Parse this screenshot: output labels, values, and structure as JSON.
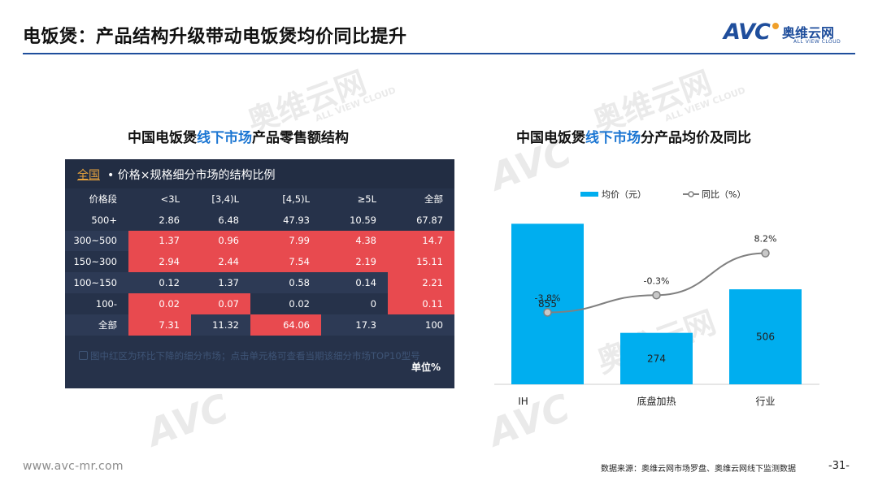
{
  "header": {
    "title": "电饭煲：产品结构升级带动电饭煲均价同比提升",
    "logo_mark": "AVC",
    "logo_cn": "奥维云网",
    "logo_en": "ALL VIEW CLOUD"
  },
  "watermark": {
    "cn": "奥维云网",
    "en": "ALL VIEW CLOUD"
  },
  "left_section": {
    "title_pre": "中国电饭煲",
    "title_hl": "线下市场",
    "title_post": "产品零售额结构"
  },
  "table_panel": {
    "scope_label": "全国",
    "subtitle": "• 价格×规格细分市场的结构比例",
    "columns": [
      "价格段",
      "<3L",
      "[3,4)L",
      "[4,5)L",
      "≥5L",
      "全部"
    ],
    "rows": [
      [
        "500+",
        "2.86",
        "6.48",
        "47.93",
        "10.59",
        "67.87"
      ],
      [
        "300~500",
        "1.37",
        "0.96",
        "7.99",
        "4.38",
        "14.7"
      ],
      [
        "150~300",
        "2.94",
        "2.44",
        "7.54",
        "2.19",
        "15.11"
      ],
      [
        "100~150",
        "0.12",
        "1.37",
        "0.58",
        "0.14",
        "2.21"
      ],
      [
        "100-",
        "0.02",
        "0.07",
        "0.02",
        "0",
        "0.11"
      ],
      [
        "全部",
        "7.31",
        "11.32",
        "64.06",
        "17.3",
        "100"
      ]
    ],
    "highlight_red": [
      [
        false,
        false,
        false,
        false,
        false,
        false
      ],
      [
        false,
        true,
        true,
        true,
        true,
        true
      ],
      [
        false,
        true,
        true,
        true,
        true,
        true
      ],
      [
        false,
        false,
        false,
        false,
        false,
        true
      ],
      [
        false,
        true,
        true,
        false,
        false,
        true
      ],
      [
        false,
        true,
        false,
        true,
        false,
        false
      ]
    ],
    "note": "图中红区为环比下降的细分市场；点击单元格可查看当期该细分市场TOP10型号",
    "unit": "单位%"
  },
  "right_section": {
    "title_pre": "中国电饭煲",
    "title_hl": "线下市场",
    "title_post": "分产品均价及同比"
  },
  "chart_data": {
    "type": "bar",
    "categories": [
      "IH",
      "底盘加热",
      "行业"
    ],
    "series": [
      {
        "name": "均价（元）",
        "values": [
          855,
          274,
          506
        ],
        "color": "#00aeef"
      },
      {
        "name": "同比（%）",
        "type": "line",
        "values": [
          -3.8,
          -0.3,
          8.2
        ],
        "color": "#808080"
      }
    ],
    "bar_labels": [
      "855",
      "274",
      "506"
    ],
    "line_labels": [
      "-3.8%",
      "-0.3%",
      "8.2%"
    ],
    "legend_position": "top",
    "grid": false
  },
  "footer": {
    "website": "www.avc-mr.com",
    "source": "数据来源：奥维云网市场罗盘、奥维云网线下监测数据",
    "page": "-31-"
  }
}
